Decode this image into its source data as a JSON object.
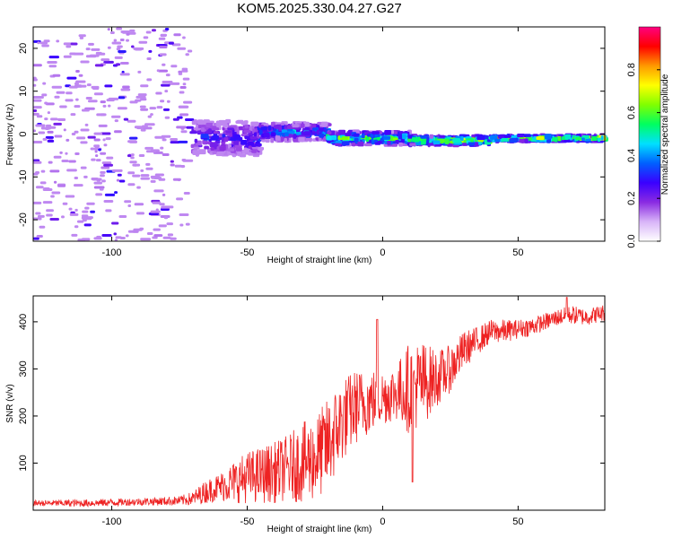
{
  "title": "KOM5.2025.330.04.27.G27",
  "chart_data": [
    {
      "type": "heatmap",
      "name": "spectrogram",
      "xlabel": "Height of straight line (km)",
      "ylabel": "Frequency (Hz)",
      "xlim": [
        -129,
        82
      ],
      "ylim": [
        -25,
        25
      ],
      "xticks": [
        -100,
        -50,
        0,
        50
      ],
      "yticks": [
        -20,
        -10,
        0,
        10,
        20
      ],
      "colorbar": {
        "label": "Normalized spectral amplitude",
        "range": [
          0,
          1
        ],
        "ticks": [
          0.0,
          0.2,
          0.4,
          0.6,
          0.8
        ],
        "colors": [
          "#ffffff",
          "#d8b4f8",
          "#8a2be2",
          "#3a00ff",
          "#0060ff",
          "#00e0ff",
          "#00ff60",
          "#80ff00",
          "#ffff00",
          "#ff9900",
          "#ff0000",
          "#ff0080"
        ]
      },
      "regions": [
        {
          "x_from": -129,
          "x_to": -71,
          "freq_center": 0,
          "freq_spread": 25,
          "amplitude": 0.08,
          "description": "noise"
        },
        {
          "x_from": -70,
          "x_to": -45,
          "freq_center": -1,
          "freq_spread": 4,
          "amplitude": 0.3
        },
        {
          "x_from": -45,
          "x_to": -20,
          "freq_center": 0.5,
          "freq_spread": 2,
          "amplitude": 0.4
        },
        {
          "x_from": -20,
          "x_to": 10,
          "freq_center": -1,
          "freq_spread": 1.5,
          "amplitude": 0.6
        },
        {
          "x_from": 10,
          "x_to": 40,
          "freq_center": -1.5,
          "freq_spread": 1,
          "amplitude": 0.7
        },
        {
          "x_from": 40,
          "x_to": 82,
          "freq_center": -1,
          "freq_spread": 0.6,
          "amplitude": 0.75
        }
      ]
    },
    {
      "type": "line",
      "name": "snr",
      "xlabel": "Height of straight line (km)",
      "ylabel": "SNR (v/v)",
      "xlim": [
        -129,
        82
      ],
      "ylim": [
        0,
        455
      ],
      "xticks": [
        -100,
        -50,
        0,
        50
      ],
      "yticks": [
        100,
        200,
        300,
        400
      ],
      "color": "#ee2222",
      "series": [
        {
          "name": "SNR envelope",
          "x": [
            -129,
            -110,
            -90,
            -75,
            -70,
            -65,
            -60,
            -55,
            -50,
            -45,
            -40,
            -35,
            -30,
            -25,
            -20,
            -15,
            -10,
            -5,
            0,
            5,
            10,
            15,
            20,
            25,
            30,
            35,
            40,
            45,
            50,
            55,
            60,
            65,
            70,
            75,
            82
          ],
          "mean": [
            15,
            15,
            18,
            20,
            25,
            40,
            50,
            60,
            70,
            75,
            80,
            90,
            100,
            110,
            140,
            190,
            220,
            230,
            240,
            250,
            260,
            270,
            280,
            300,
            340,
            360,
            380,
            380,
            385,
            390,
            400,
            410,
            415,
            410,
            420
          ],
          "amp": [
            6,
            8,
            8,
            10,
            15,
            25,
            30,
            45,
            55,
            60,
            65,
            70,
            85,
            90,
            100,
            90,
            80,
            70,
            60,
            60,
            100,
            90,
            60,
            50,
            40,
            30,
            25,
            25,
            20,
            20,
            18,
            18,
            20,
            18,
            18
          ]
        }
      ],
      "annotations": [
        {
          "x": 11,
          "y": 60,
          "note": "dip"
        },
        {
          "x": -2,
          "y": 405,
          "note": "spike"
        },
        {
          "x": 68,
          "y": 452,
          "note": "peak"
        }
      ]
    }
  ]
}
